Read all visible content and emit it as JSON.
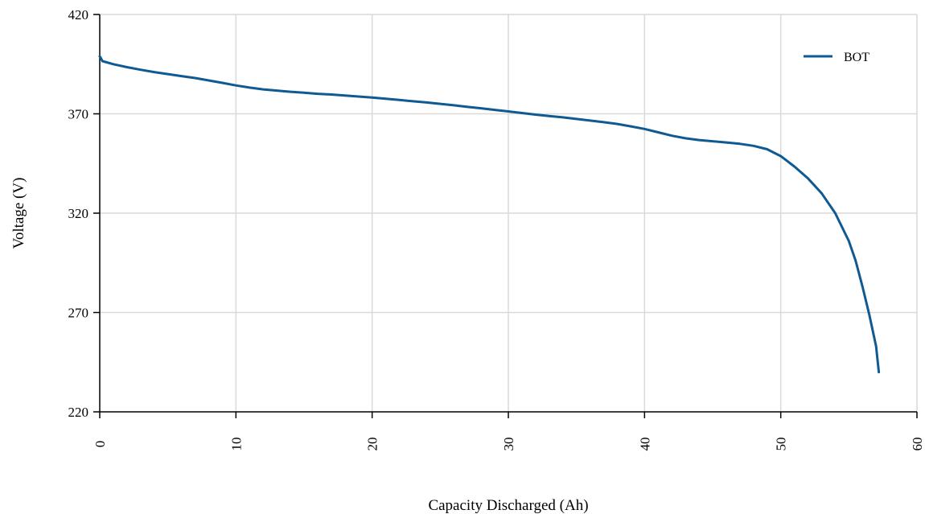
{
  "chart_data": {
    "type": "line",
    "xlabel": "Capacity Discharged (Ah)",
    "ylabel": "Voltage (V)",
    "xlim": [
      0,
      60
    ],
    "ylim": [
      220,
      420
    ],
    "xticks": [
      0,
      10,
      20,
      30,
      40,
      50,
      60
    ],
    "yticks": [
      220,
      270,
      320,
      370,
      420
    ],
    "xtick_labels": [
      "0",
      "10",
      "20",
      "30",
      "40",
      "50",
      "60"
    ],
    "ytick_labels": [
      "220",
      "270",
      "320",
      "370",
      "420"
    ],
    "grid": true,
    "legend_position": "top-right",
    "series": [
      {
        "name": "BOT",
        "color": "#0f5a93",
        "points": [
          [
            0.0,
            399.0
          ],
          [
            0.2,
            396.5
          ],
          [
            1,
            395.0
          ],
          [
            2,
            393.5
          ],
          [
            3,
            392.2
          ],
          [
            4,
            391.0
          ],
          [
            5,
            390.0
          ],
          [
            6,
            389.0
          ],
          [
            7,
            388.0
          ],
          [
            8,
            386.8
          ],
          [
            9,
            385.6
          ],
          [
            10,
            384.3
          ],
          [
            11,
            383.2
          ],
          [
            12,
            382.3
          ],
          [
            13,
            381.7
          ],
          [
            14,
            381.1
          ],
          [
            15,
            380.6
          ],
          [
            16,
            380.1
          ],
          [
            17,
            379.7
          ],
          [
            18,
            379.2
          ],
          [
            19,
            378.7
          ],
          [
            20,
            378.2
          ],
          [
            21,
            377.6
          ],
          [
            22,
            377.0
          ],
          [
            23,
            376.3
          ],
          [
            24,
            375.7
          ],
          [
            25,
            375.0
          ],
          [
            26,
            374.3
          ],
          [
            27,
            373.5
          ],
          [
            28,
            372.8
          ],
          [
            29,
            372.0
          ],
          [
            30,
            371.2
          ],
          [
            31,
            370.4
          ],
          [
            32,
            369.6
          ],
          [
            33,
            368.9
          ],
          [
            34,
            368.2
          ],
          [
            35,
            367.4
          ],
          [
            36,
            366.6
          ],
          [
            37,
            365.8
          ],
          [
            38,
            364.9
          ],
          [
            39,
            363.7
          ],
          [
            40,
            362.4
          ],
          [
            41,
            360.7
          ],
          [
            42,
            359.0
          ],
          [
            43,
            357.7
          ],
          [
            44,
            356.8
          ],
          [
            45,
            356.2
          ],
          [
            46,
            355.6
          ],
          [
            47,
            354.9
          ],
          [
            48,
            353.9
          ],
          [
            49,
            352.2
          ],
          [
            50,
            348.7
          ],
          [
            51,
            343.5
          ],
          [
            52,
            337.5
          ],
          [
            53,
            330.0
          ],
          [
            54,
            320.0
          ],
          [
            55,
            306.0
          ],
          [
            55.5,
            296.0
          ],
          [
            56,
            283.0
          ],
          [
            56.5,
            269.0
          ],
          [
            57,
            253.0
          ],
          [
            57.2,
            240.0
          ]
        ]
      }
    ]
  }
}
